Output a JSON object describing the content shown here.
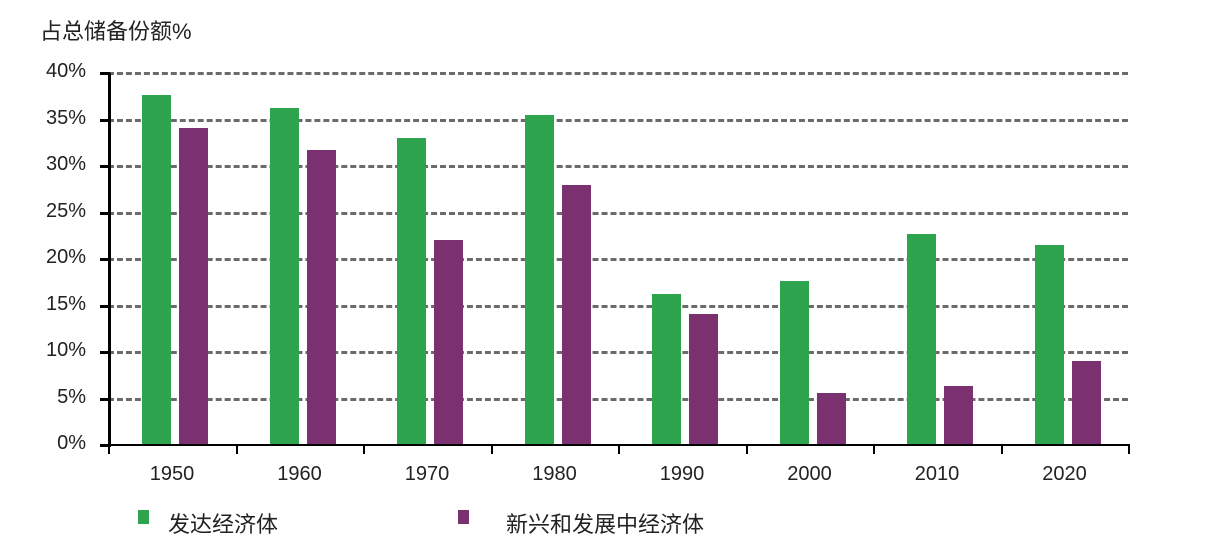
{
  "chart_data": {
    "type": "bar",
    "title": "占总储备份额%",
    "xlabel": "",
    "ylabel": "占总储备份额%",
    "ylim": [
      0,
      40
    ],
    "yticks": [
      "0%",
      "5%",
      "10%",
      "15%",
      "20%",
      "25%",
      "30%",
      "35%",
      "40%"
    ],
    "grid": true,
    "legend_position": "bottom",
    "categories": [
      "1950",
      "1960",
      "1970",
      "1980",
      "1990",
      "2000",
      "2010",
      "2020"
    ],
    "series": [
      {
        "name": "发达经济体",
        "color": "#2ea44f",
        "values": [
          37.6,
          36.2,
          33.0,
          35.5,
          16.2,
          17.6,
          22.7,
          21.5
        ]
      },
      {
        "name": "新兴和发展中经济体",
        "color": "#7b3170",
        "values": [
          34.1,
          31.7,
          22.0,
          28.0,
          14.1,
          5.6,
          6.3,
          9.0
        ]
      }
    ]
  },
  "title": "占总储备份额%",
  "yticks": [
    "40%",
    "35%",
    "30%",
    "25%",
    "20%",
    "15%",
    "10%",
    "5%",
    "0%"
  ],
  "categories": [
    "1950",
    "1960",
    "1970",
    "1980",
    "1990",
    "2000",
    "2010",
    "2020"
  ],
  "legend": [
    {
      "label": "发达经济体",
      "color": "#2ea44f"
    },
    {
      "label": "新兴和发展中经济体",
      "color": "#7b3170"
    }
  ]
}
